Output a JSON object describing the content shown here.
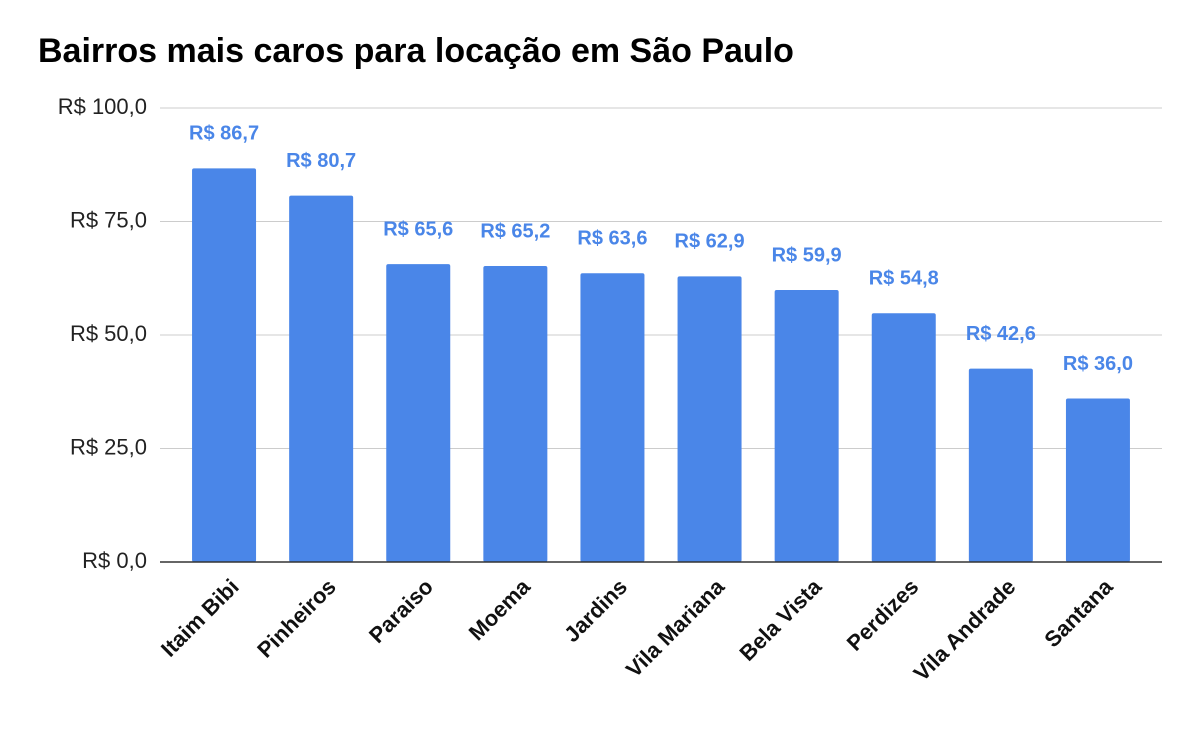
{
  "chart_data": {
    "type": "bar",
    "title": "Bairros mais caros para locação em São Paulo",
    "categories": [
      "Itaim Bibi",
      "Pinheiros",
      "Paraiso",
      "Moema",
      "Jardins",
      "Vila Mariana",
      "Bela Vista",
      "Perdizes",
      "Vila Andrade",
      "Santana"
    ],
    "values": [
      86.7,
      80.7,
      65.6,
      65.2,
      63.6,
      62.9,
      59.9,
      54.8,
      42.6,
      36.0
    ],
    "value_labels": [
      "R$ 86,7",
      "R$ 80,7",
      "R$ 65,6",
      "R$ 65,2",
      "R$ 63,6",
      "R$ 62,9",
      "R$ 59,9",
      "R$ 54,8",
      "R$ 42,6",
      "R$ 36,0"
    ],
    "color": "#4a86e8",
    "ylim": [
      0,
      100
    ],
    "yticks": [
      {
        "value": 0,
        "label": "R$ 0,0"
      },
      {
        "value": 25,
        "label": "R$ 25,0"
      },
      {
        "value": 50,
        "label": "R$ 50,0"
      },
      {
        "value": 75,
        "label": "R$ 75,0"
      },
      {
        "value": 100,
        "label": "R$ 100,0"
      }
    ],
    "grid": true
  }
}
